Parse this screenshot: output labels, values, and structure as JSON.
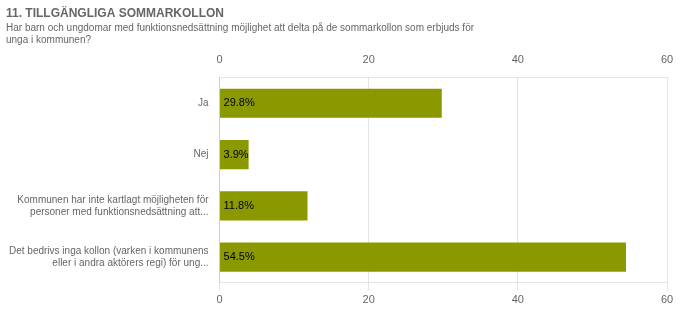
{
  "chart_data": {
    "type": "bar",
    "orientation": "horizontal",
    "title": "11. TILLGÄNGLIGA SOMMARKOLLON",
    "subtitle": "Har barn och ungdomar med funktionsnedsättning möjlighet att delta på de sommarkollon som erbjuds för\nunga i kommunen?",
    "categories": [
      "Ja",
      "Nej",
      "Kommunen har inte kartlagt möjligheten för\npersoner med funktionsnedsättning att...",
      "Det bedrivs inga kollon (varken i kommunens\neller i andra aktörers regi) för ung..."
    ],
    "values": [
      29.8,
      3.9,
      11.8,
      54.5
    ],
    "value_labels": [
      "29.8%",
      "3.9%",
      "11.8%",
      "54.5%"
    ],
    "data_labels": true,
    "color": "#8B9900",
    "xlim": [
      0,
      60
    ],
    "xticks": [
      0,
      20,
      40,
      60
    ],
    "grid": true
  }
}
